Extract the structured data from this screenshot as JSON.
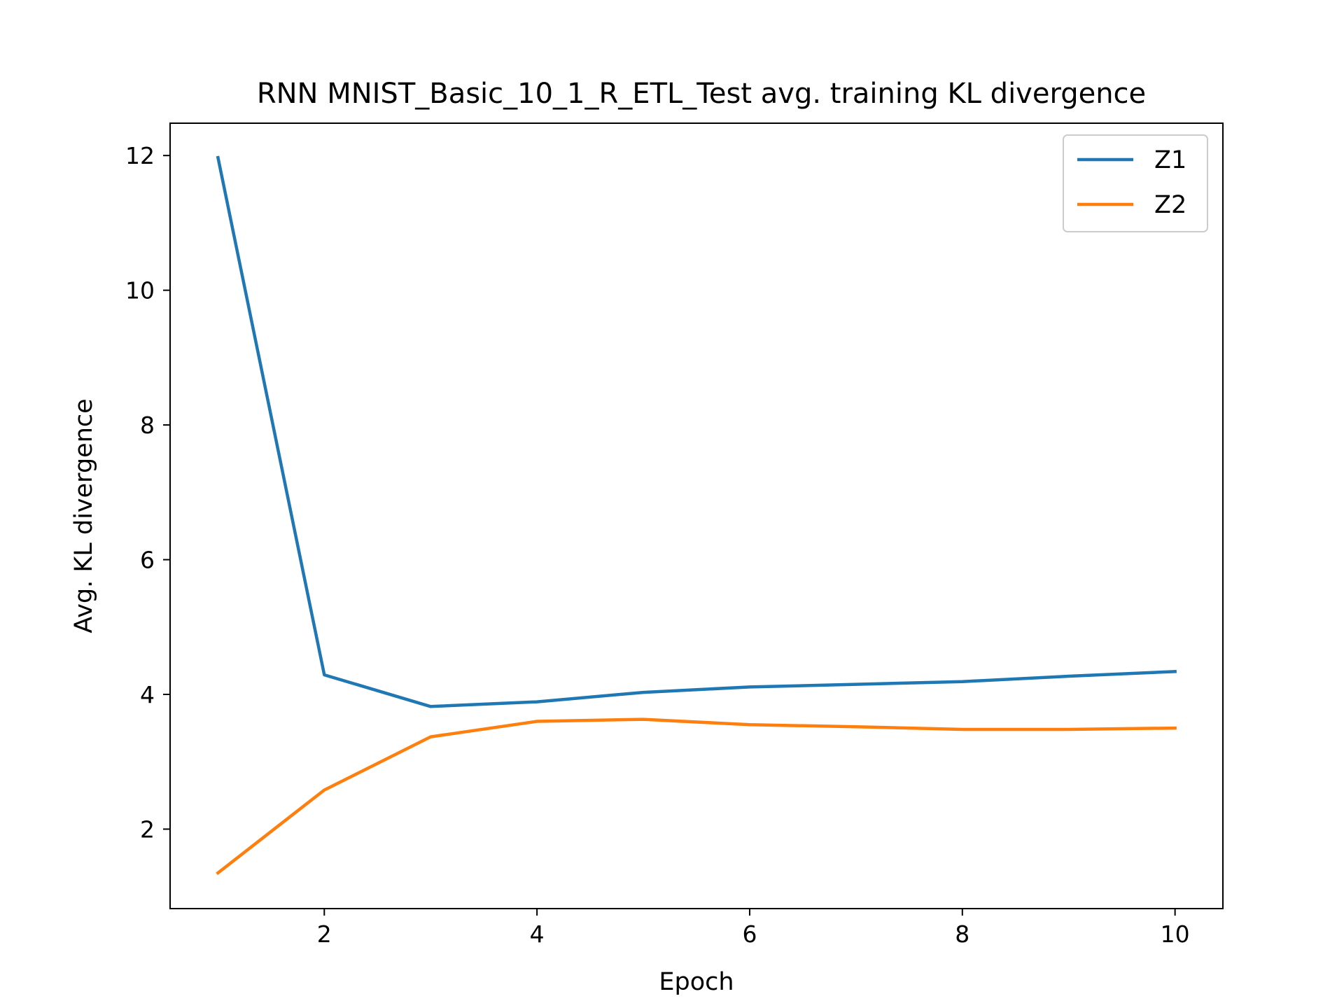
{
  "chart_data": {
    "type": "line",
    "title": "RNN MNIST_Basic_10_1_R_ETL_Test avg. training KL divergence",
    "xlabel": "Epoch",
    "ylabel": "Avg. KL divergence",
    "x": [
      1,
      2,
      3,
      4,
      5,
      6,
      7,
      8,
      9,
      10
    ],
    "xlim": [
      0.55,
      10.45
    ],
    "ylim": [
      0.82,
      12.48
    ],
    "xticks": [
      2,
      4,
      6,
      8,
      10
    ],
    "yticks": [
      2,
      4,
      6,
      8,
      10,
      12
    ],
    "grid": false,
    "legend_position": "top-right",
    "series": [
      {
        "name": "Z1",
        "color": "#1f77b4",
        "values": [
          11.97,
          4.29,
          3.82,
          3.89,
          4.03,
          4.11,
          4.15,
          4.19,
          4.27,
          4.34
        ]
      },
      {
        "name": "Z2",
        "color": "#ff7f0e",
        "values": [
          1.35,
          2.58,
          3.37,
          3.6,
          3.63,
          3.55,
          3.52,
          3.48,
          3.48,
          3.5
        ]
      }
    ]
  }
}
